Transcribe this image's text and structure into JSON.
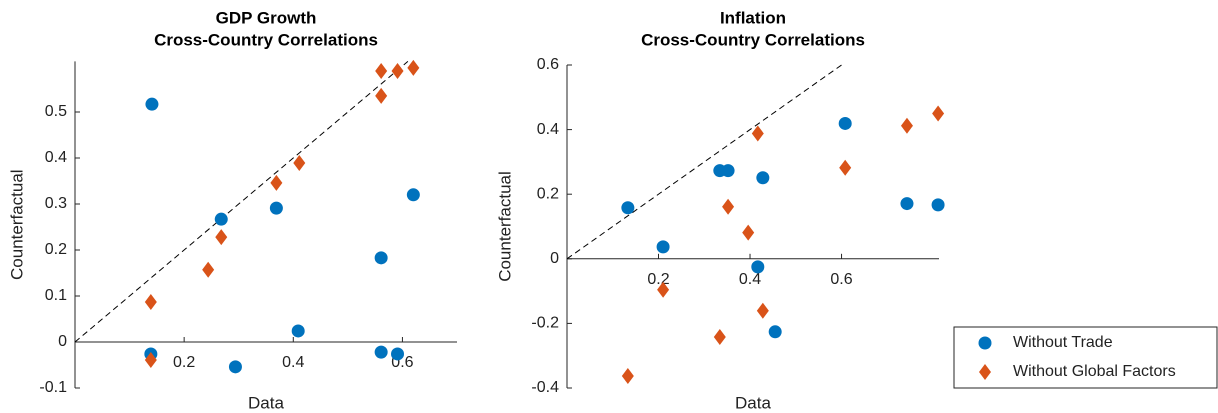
{
  "chart_data": [
    {
      "type": "scatter",
      "title": [
        "GDP Growth",
        "Cross-Country Correlations"
      ],
      "x_label": "Data",
      "y_label": "Counterfactual",
      "xlim": [
        0,
        0.7
      ],
      "ylim": [
        -0.1,
        0.61
      ],
      "xticks": [
        0.2,
        0.4,
        0.6
      ],
      "yticks": [
        -0.1,
        0,
        0.1,
        0.2,
        0.3,
        0.4,
        0.5
      ],
      "diagonal": true,
      "series": [
        {
          "name": "Without Trade",
          "color": "#0072BD",
          "marker": "circle",
          "x": [
            0.141,
            0.268,
            0.369,
            0.409,
            0.561,
            0.62,
            0.139,
            0.294,
            0.561,
            0.591
          ],
          "values": [
            0.517,
            0.267,
            0.291,
            0.024,
            0.183,
            0.32,
            -0.026,
            -0.054,
            -0.022,
            -0.026
          ]
        },
        {
          "name": "Without Global Factors",
          "color": "#D95319",
          "marker": "diamond",
          "x": [
            0.139,
            0.139,
            0.244,
            0.268,
            0.369,
            0.411,
            0.561,
            0.561,
            0.591,
            0.62
          ],
          "values": [
            0.087,
            -0.039,
            0.157,
            0.228,
            0.346,
            0.389,
            0.535,
            0.589,
            0.589,
            0.596
          ]
        }
      ]
    },
    {
      "type": "scatter",
      "title": [
        "Inflation",
        "Cross-Country Correlations"
      ],
      "x_label": "Data",
      "y_label": "Counterfactual",
      "xlim": [
        0,
        0.813
      ],
      "ylim": [
        -0.4,
        0.6
      ],
      "xticks": [
        0.2,
        0.4,
        0.6
      ],
      "yticks": [
        -0.4,
        -0.2,
        0,
        0.2,
        0.4,
        0.6
      ],
      "diagonal": true,
      "legend": "lower right",
      "series": [
        {
          "name": "Without Trade",
          "color": "#0072BD",
          "marker": "circle",
          "x": [
            0.133,
            0.21,
            0.334,
            0.352,
            0.428,
            0.417,
            0.455,
            0.608,
            0.743,
            0.811
          ],
          "values": [
            0.158,
            0.037,
            0.273,
            0.273,
            0.251,
            -0.025,
            -0.226,
            0.419,
            0.171,
            0.167
          ]
        },
        {
          "name": "Without Global Factors",
          "color": "#D95319",
          "marker": "diamond",
          "x": [
            0.133,
            0.21,
            0.334,
            0.352,
            0.428,
            0.396,
            0.417,
            0.608,
            0.743,
            0.811
          ],
          "values": [
            -0.363,
            -0.096,
            -0.242,
            0.161,
            -0.161,
            0.081,
            0.388,
            0.282,
            0.412,
            0.45
          ]
        }
      ]
    }
  ]
}
